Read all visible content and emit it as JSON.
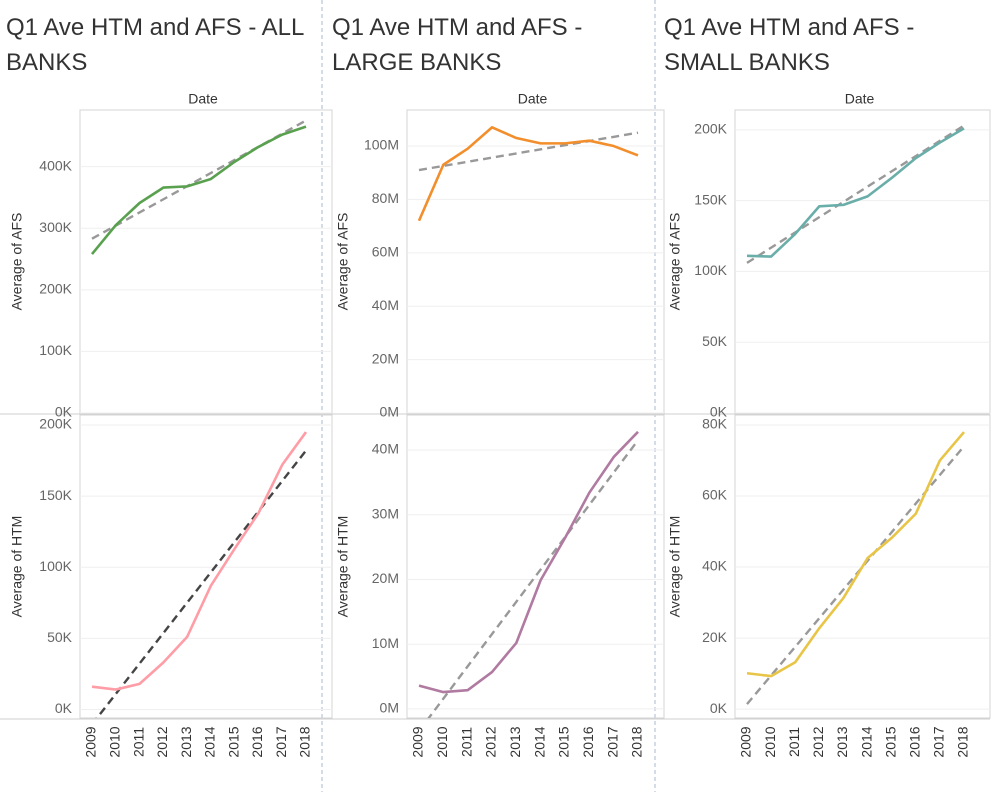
{
  "chart_data": [
    {
      "type": "line",
      "title": "Q1 Ave HTM and AFS - ALL BANKS",
      "x_label": "Date",
      "y_label": "Average of AFS",
      "x": [
        2009,
        2010,
        2011,
        2012,
        2013,
        2014,
        2015,
        2016,
        2017,
        2018
      ],
      "values": [
        258000,
        305000,
        341000,
        366000,
        368000,
        380000,
        408000,
        432000,
        452000,
        465000
      ],
      "color": "#59a14f",
      "trend": {
        "values": [
          283000,
          475000
        ],
        "color": "#999999"
      },
      "ylim": [
        0,
        492000
      ],
      "yticks": [
        {
          "value": 0,
          "label": "0K"
        },
        {
          "value": 100000,
          "label": "100K"
        },
        {
          "value": 200000,
          "label": "200K"
        },
        {
          "value": 300000,
          "label": "300K"
        },
        {
          "value": 400000,
          "label": "400K"
        }
      ],
      "grid": true
    },
    {
      "type": "line",
      "y_label": "Average of HTM",
      "x": [
        2009,
        2010,
        2011,
        2012,
        2013,
        2014,
        2015,
        2016,
        2017,
        2018
      ],
      "values": [
        16000,
        14000,
        18000,
        33000,
        51000,
        87000,
        113000,
        138000,
        172000,
        195000
      ],
      "color": "#ff9da7",
      "trend": {
        "values": [
          -10500,
          182000
        ],
        "color": "#444444"
      },
      "ylim": [
        -6000,
        207000
      ],
      "yticks": [
        {
          "value": 0,
          "label": "0K"
        },
        {
          "value": 50000,
          "label": "50K"
        },
        {
          "value": 100000,
          "label": "100K"
        },
        {
          "value": 150000,
          "label": "150K"
        },
        {
          "value": 200000,
          "label": "200K"
        }
      ],
      "grid": true
    },
    {
      "type": "line",
      "title": "Q1 Ave HTM and AFS - LARGE BANKS",
      "x_label": "Date",
      "y_label": "Average of AFS",
      "x": [
        2009,
        2010,
        2011,
        2012,
        2013,
        2014,
        2015,
        2016,
        2017,
        2018
      ],
      "values": [
        72000000,
        93000000,
        99000000,
        107000000,
        103000000,
        101000000,
        101000000,
        102000000,
        100000000,
        96500000
      ],
      "color": "#f28e2b",
      "trend": {
        "values": [
          91000000,
          105000000
        ],
        "color": "#999999"
      },
      "ylim": [
        0,
        113500000
      ],
      "yticks": [
        {
          "value": 0,
          "label": "0M"
        },
        {
          "value": 20000000,
          "label": "20M"
        },
        {
          "value": 40000000,
          "label": "40M"
        },
        {
          "value": 60000000,
          "label": "60M"
        },
        {
          "value": 80000000,
          "label": "80M"
        },
        {
          "value": 100000000,
          "label": "100M"
        }
      ],
      "grid": true
    },
    {
      "type": "line",
      "y_label": "Average of HTM",
      "x": [
        2009,
        2010,
        2011,
        2012,
        2013,
        2014,
        2015,
        2016,
        2017,
        2018
      ],
      "values": [
        3600000,
        2600000,
        2900000,
        5700000,
        10200000,
        19900000,
        26400000,
        33400000,
        38900000,
        42800000
      ],
      "color": "#b07aa1",
      "trend": {
        "values": [
          -3400000,
          41500000
        ],
        "color": "#999999"
      },
      "ylim": [
        -1400000,
        45400000
      ],
      "yticks": [
        {
          "value": 0,
          "label": "0M"
        },
        {
          "value": 10000000,
          "label": "10M"
        },
        {
          "value": 20000000,
          "label": "20M"
        },
        {
          "value": 30000000,
          "label": "30M"
        },
        {
          "value": 40000000,
          "label": "40M"
        }
      ],
      "grid": true
    },
    {
      "type": "line",
      "title": "Q1 Ave HTM and AFS - SMALL BANKS",
      "x_label": "Date",
      "y_label": "Average of AFS",
      "x": [
        2009,
        2010,
        2011,
        2012,
        2013,
        2014,
        2015,
        2016,
        2017,
        2018
      ],
      "values": [
        111000,
        110500,
        126500,
        146000,
        147000,
        153000,
        166000,
        180000,
        191000,
        201000
      ],
      "color": "#6aaea9",
      "trend": {
        "values": [
          106000,
          203000
        ],
        "color": "#999999"
      },
      "ylim": [
        0,
        214000
      ],
      "yticks": [
        {
          "value": 0,
          "label": "0K"
        },
        {
          "value": 50000,
          "label": "50K"
        },
        {
          "value": 100000,
          "label": "100K"
        },
        {
          "value": 150000,
          "label": "150K"
        },
        {
          "value": 200000,
          "label": "200K"
        }
      ],
      "grid": true
    },
    {
      "type": "line",
      "y_label": "Average of HTM",
      "x": [
        2009,
        2010,
        2011,
        2012,
        2013,
        2014,
        2015,
        2016,
        2017,
        2018
      ],
      "values": [
        10100,
        9300,
        13200,
        22800,
        31300,
        42500,
        48200,
        55000,
        70000,
        78000
      ],
      "color": "#e8c547",
      "trend": {
        "values": [
          1400,
          74000
        ],
        "color": "#999999"
      },
      "ylim": [
        -2500,
        82800
      ],
      "yticks": [
        {
          "value": 0,
          "label": "0K"
        },
        {
          "value": 20000,
          "label": "20K"
        },
        {
          "value": 40000,
          "label": "40K"
        },
        {
          "value": 60000,
          "label": "60K"
        },
        {
          "value": 80000,
          "label": "80K"
        }
      ],
      "grid": true
    }
  ]
}
